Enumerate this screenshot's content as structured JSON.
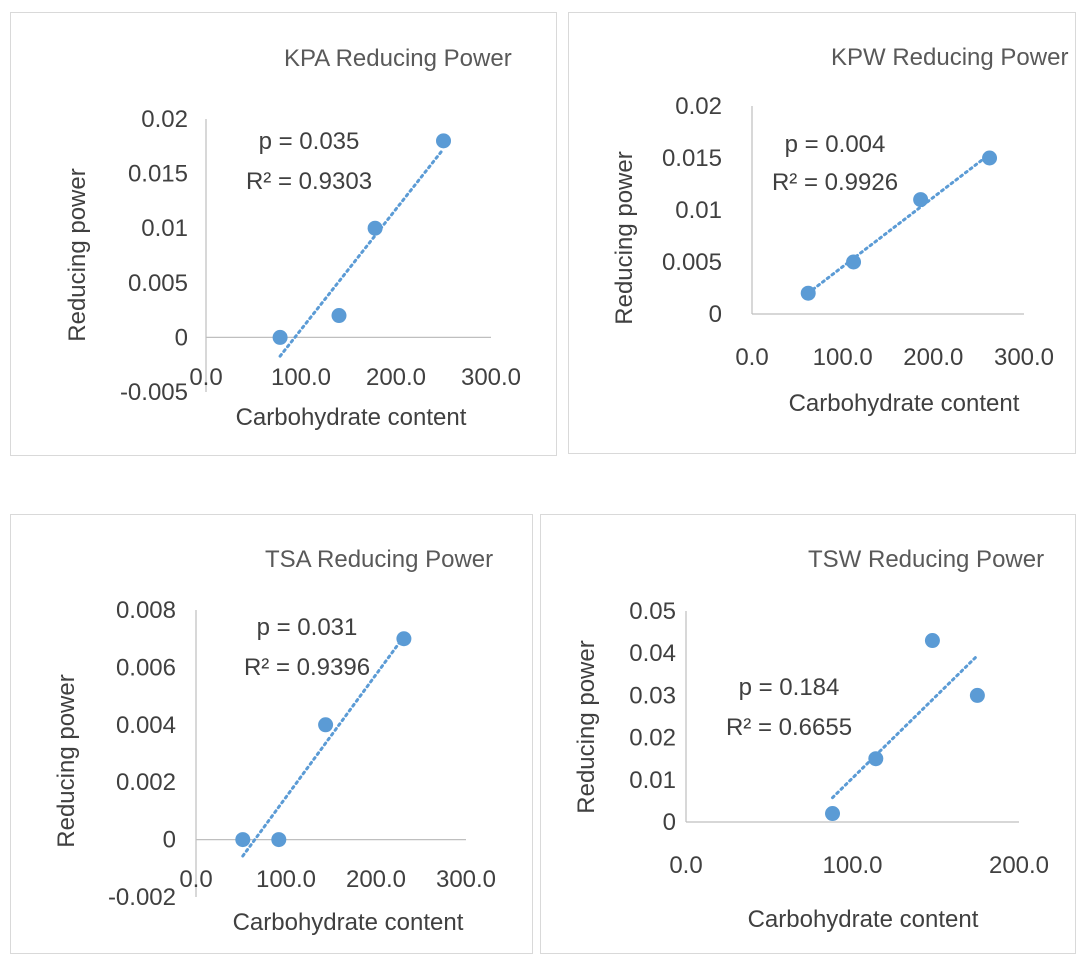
{
  "chart_data": [
    {
      "type": "scatter",
      "title": "KPA Reducing Power",
      "xlabel": "Carbohydrate content",
      "ylabel": "Reducing power",
      "xlim": [
        0,
        300
      ],
      "ylim": [
        -0.005,
        0.02
      ],
      "x_ticks": [
        "0.0",
        "100.0",
        "200.0",
        "300.0"
      ],
      "y_ticks": [
        "-0.005",
        "0",
        "0.005",
        "0.01",
        "0.015",
        "0.02"
      ],
      "points": [
        {
          "x": 78,
          "y": 0
        },
        {
          "x": 140,
          "y": 0.002
        },
        {
          "x": 178,
          "y": 0.01
        },
        {
          "x": 250,
          "y": 0.018
        }
      ],
      "trendline": {
        "type": "linear",
        "style": "dotted"
      },
      "annotations": {
        "p": "p = 0.035",
        "r2": "R² = 0.9303"
      },
      "grid": false,
      "legend": "none"
    },
    {
      "type": "scatter",
      "title": "KPW Reducing Power",
      "xlabel": "Carbohydrate content",
      "ylabel": "Reducing power",
      "xlim": [
        0,
        300
      ],
      "ylim": [
        0,
        0.02
      ],
      "x_ticks": [
        "0.0",
        "100.0",
        "200.0",
        "300.0"
      ],
      "y_ticks": [
        "0",
        "0.005",
        "0.01",
        "0.015",
        "0.02"
      ],
      "points": [
        {
          "x": 62,
          "y": 0.002
        },
        {
          "x": 112,
          "y": 0.005
        },
        {
          "x": 186,
          "y": 0.011
        },
        {
          "x": 262,
          "y": 0.015
        }
      ],
      "trendline": {
        "type": "linear",
        "style": "dotted"
      },
      "annotations": {
        "p": "p = 0.004",
        "r2": "R² = 0.9926"
      },
      "grid": false,
      "legend": "none"
    },
    {
      "type": "scatter",
      "title": "TSA Reducing Power",
      "xlabel": "Carbohydrate content",
      "ylabel": "Reducing power",
      "xlim": [
        0,
        300
      ],
      "ylim": [
        -0.002,
        0.008
      ],
      "x_ticks": [
        "0.0",
        "100.0",
        "200.0",
        "300.0"
      ],
      "y_ticks": [
        "-0.002",
        "0",
        "0.002",
        "0.004",
        "0.006",
        "0.008"
      ],
      "points": [
        {
          "x": 52,
          "y": 0
        },
        {
          "x": 92,
          "y": 0
        },
        {
          "x": 144,
          "y": 0.004
        },
        {
          "x": 231,
          "y": 0.007
        }
      ],
      "trendline": {
        "type": "linear",
        "style": "dotted"
      },
      "annotations": {
        "p": "p = 0.031",
        "r2": "R² = 0.9396"
      },
      "grid": false,
      "legend": "none"
    },
    {
      "type": "scatter",
      "title": "TSW Reducing Power",
      "xlabel": "Carbohydrate content",
      "ylabel": "Reducing power",
      "xlim": [
        0,
        200
      ],
      "ylim": [
        0,
        0.05
      ],
      "x_ticks": [
        "0.0",
        "100.0",
        "200.0"
      ],
      "y_ticks": [
        "0",
        "0.01",
        "0.02",
        "0.03",
        "0.04",
        "0.05"
      ],
      "points": [
        {
          "x": 88,
          "y": 0.002
        },
        {
          "x": 114,
          "y": 0.015
        },
        {
          "x": 148,
          "y": 0.043
        },
        {
          "x": 175,
          "y": 0.03
        }
      ],
      "trendline": {
        "type": "linear",
        "style": "dotted"
      },
      "annotations": {
        "p": "p = 0.184",
        "r2": "R² = 0.6655"
      },
      "grid": false,
      "legend": "none"
    }
  ],
  "colors": {
    "marker": "#5b9bd5",
    "trendline": "#5b9bd5",
    "axis": "#bfbfbf",
    "text": "#404040",
    "title": "#595959"
  }
}
